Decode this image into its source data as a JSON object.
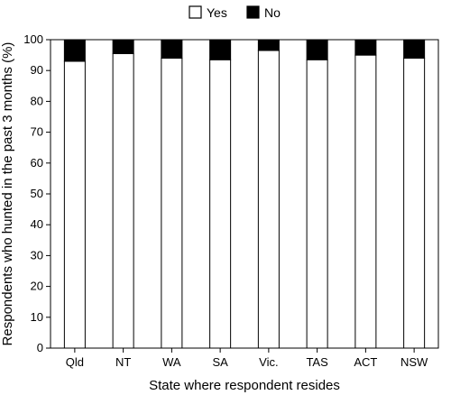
{
  "chart_data": {
    "type": "bar",
    "stacked": true,
    "categories": [
      "Qld",
      "NT",
      "WA",
      "SA",
      "Vic.",
      "TAS",
      "ACT",
      "NSW"
    ],
    "series": [
      {
        "name": "Yes",
        "color": "#ffffff",
        "values": [
          93,
          95.5,
          94,
          93.5,
          96.5,
          93.5,
          95,
          94
        ]
      },
      {
        "name": "No",
        "color": "#000000",
        "values": [
          7,
          4.5,
          6,
          6.5,
          3.5,
          6.5,
          5,
          6
        ]
      }
    ],
    "xlabel": "State where respondent resides",
    "ylabel": "Respondents who hunted in the  past 3 months (%)",
    "ylim": [
      0,
      100
    ],
    "yticks": [
      0,
      10,
      20,
      30,
      40,
      50,
      60,
      70,
      80,
      90,
      100
    ],
    "legend_position": "top-center",
    "grid": false
  }
}
